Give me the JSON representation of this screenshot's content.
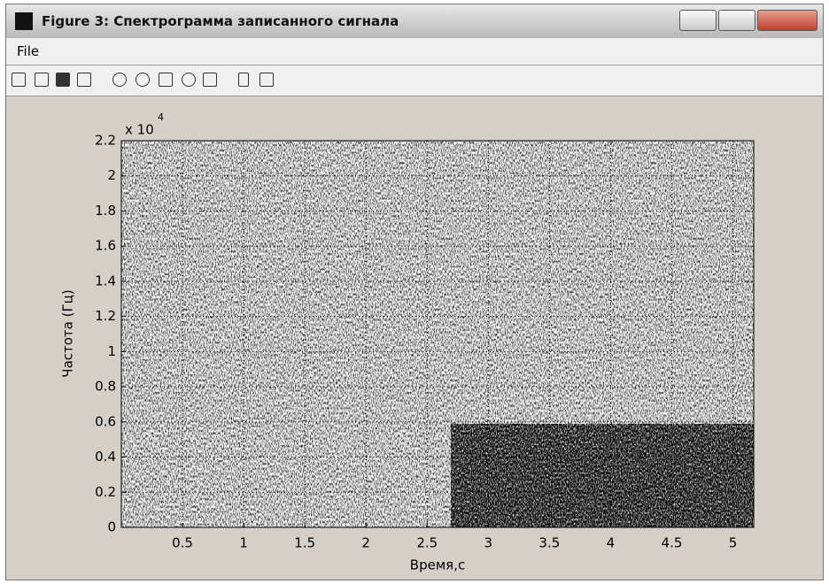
{
  "window": {
    "title": "Figure 3: Спектрограмма записанного сигнала",
    "menu": [
      "File"
    ]
  },
  "chart_data": {
    "type": "spectrogram",
    "xlabel": "Время,с",
    "ylabel": "Частота (Гц)",
    "y_multiplier": "x 10",
    "y_multiplier_exponent": "4",
    "xlim": [
      0,
      5.17
    ],
    "ylim": [
      0,
      2.2
    ],
    "xticks": [
      0.5,
      1,
      1.5,
      2,
      2.5,
      3,
      3.5,
      4,
      4.5,
      5
    ],
    "yticks": [
      0,
      0.2,
      0.4,
      0.6,
      0.8,
      1,
      1.2,
      1.4,
      1.6,
      1.8,
      2,
      2.2
    ],
    "grid": true
  }
}
